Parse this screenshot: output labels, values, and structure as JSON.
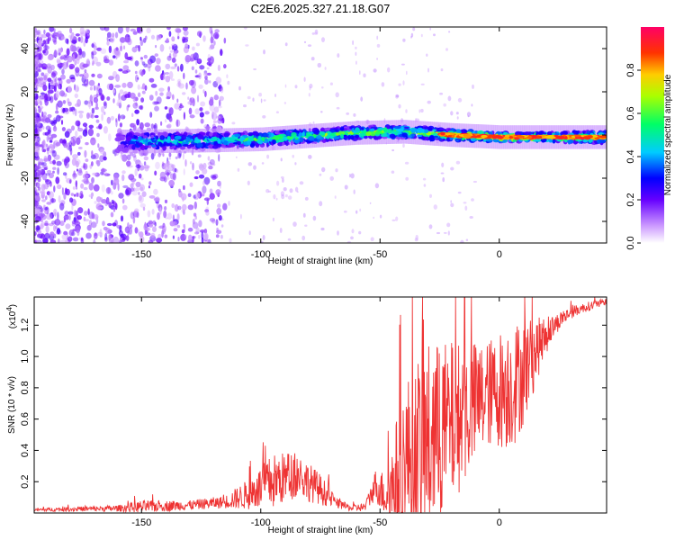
{
  "title": "C2E6.2025.327.21.18.G07",
  "chart_data": [
    {
      "type": "heatmap",
      "name": "spectrogram",
      "xlabel": "Height of straight line (km)",
      "ylabel": "Frequency (Hz)",
      "xlim": [
        -195,
        45
      ],
      "ylim": [
        -50,
        50
      ],
      "xticks": [
        -150,
        -100,
        -50,
        0
      ],
      "yticks": [
        -40,
        -20,
        0,
        20,
        40
      ],
      "colorbar": {
        "label": "Normalized spectral amplitude",
        "range": [
          0,
          1
        ],
        "ticks": [
          "0.0",
          "0.2",
          "0.4",
          "0.6",
          "0.8"
        ],
        "tick_values": [
          0,
          0.2,
          0.4,
          0.6,
          0.8
        ]
      },
      "band_center_hz": {
        "x": [
          -190,
          -150,
          -120,
          -100,
          -80,
          -60,
          -40,
          -20,
          0,
          20,
          45
        ],
        "y": [
          -3,
          -3,
          -2.5,
          -2,
          -0.5,
          1,
          1.5,
          0,
          -1,
          -1,
          -1
        ]
      },
      "band_amplitude": {
        "x": [
          -195,
          -160,
          -150,
          -120,
          -100,
          -80,
          -60,
          -40,
          -20,
          0,
          20,
          45
        ],
        "y": [
          0.15,
          0.2,
          0.45,
          0.5,
          0.55,
          0.6,
          0.65,
          0.6,
          0.7,
          0.85,
          0.85,
          0.6
        ]
      }
    },
    {
      "type": "line",
      "name": "snr",
      "xlabel": "Height of straight line (km)",
      "ylabel": "SNR (10 * v/v)",
      "multiplier_label": "(x10",
      "multiplier_exp": "4",
      "xlim": [
        -195,
        45
      ],
      "ylim": [
        0,
        1.38
      ],
      "xticks": [
        -150,
        -100,
        -50,
        0
      ],
      "yticks": [
        0.2,
        0.4,
        0.6,
        0.8,
        1.0,
        1.2
      ],
      "ytick_labels": [
        "0.2",
        "0.4",
        "0.6",
        "0.8",
        "1.0",
        "1.2"
      ],
      "color": "#ee3333",
      "envelope": {
        "x": [
          -195,
          -160,
          -150,
          -130,
          -115,
          -105,
          -95,
          -85,
          -75,
          -68,
          -62,
          -56,
          -52,
          -48,
          -45,
          -42,
          -38,
          -34,
          -30,
          -26,
          -22,
          -18,
          -14,
          -10,
          -6,
          -2,
          2,
          6,
          10,
          14,
          18,
          22,
          26,
          30,
          35,
          40,
          45
        ],
        "mean": [
          0.02,
          0.03,
          0.04,
          0.05,
          0.07,
          0.12,
          0.2,
          0.25,
          0.15,
          0.06,
          0.03,
          0.04,
          0.18,
          0.12,
          0.15,
          0.25,
          0.35,
          0.4,
          0.45,
          0.5,
          0.55,
          0.6,
          0.65,
          0.7,
          0.75,
          0.78,
          0.8,
          0.82,
          0.9,
          1.0,
          1.1,
          1.18,
          1.24,
          1.28,
          1.31,
          1.33,
          1.35
        ],
        "amp": [
          0.01,
          0.02,
          0.04,
          0.03,
          0.04,
          0.1,
          0.18,
          0.15,
          0.1,
          0.03,
          0.02,
          0.03,
          0.1,
          0.15,
          0.3,
          0.45,
          0.55,
          0.6,
          0.65,
          0.6,
          0.55,
          0.5,
          0.45,
          0.4,
          0.35,
          0.35,
          0.4,
          0.4,
          0.35,
          0.25,
          0.15,
          0.08,
          0.05,
          0.04,
          0.03,
          0.03,
          0.02
        ]
      }
    }
  ]
}
